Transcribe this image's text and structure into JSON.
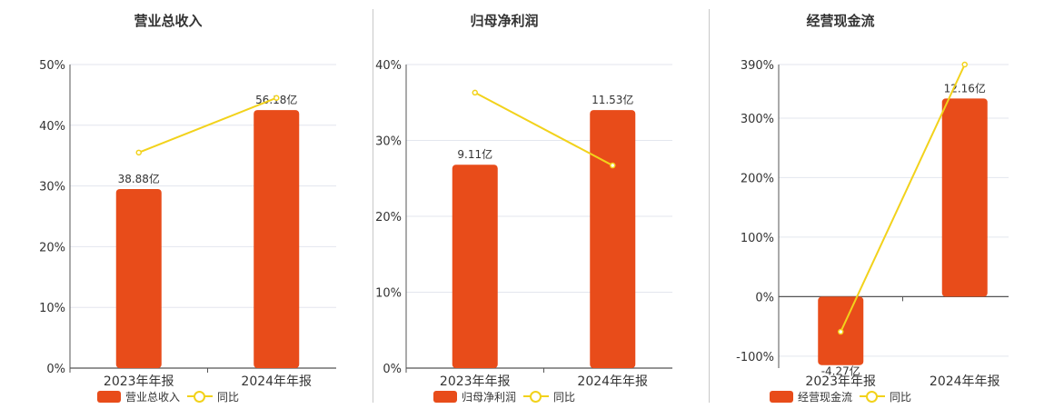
{
  "colors": {
    "bar": "#E84C1A",
    "line": "#F2D21B",
    "grid": "#E3E6EE",
    "axis": "#555555"
  },
  "chart_data": [
    {
      "type": "bar",
      "title": "营业总收入",
      "categories": [
        "2023年年报",
        "2024年年报"
      ],
      "series": [
        {
          "name": "营业总收入",
          "type": "bar",
          "values": [
            29.5,
            42.5
          ],
          "labels": [
            "38.88亿",
            "56.18亿"
          ]
        },
        {
          "name": "同比",
          "type": "line",
          "values": [
            35.5,
            44.5
          ]
        }
      ],
      "ylim": [
        0,
        50
      ],
      "yticks": [
        0,
        10,
        20,
        30,
        40,
        50
      ],
      "ytick_labels": [
        "0%",
        "10%",
        "20%",
        "30%",
        "40%",
        "50%"
      ],
      "grid": true,
      "legend": "bottom-center"
    },
    {
      "type": "bar",
      "title": "归母净利润",
      "categories": [
        "2023年年报",
        "2024年年报"
      ],
      "series": [
        {
          "name": "归母净利润",
          "type": "bar",
          "values": [
            26.8,
            34.0
          ],
          "labels": [
            "9.11亿",
            "11.53亿"
          ]
        },
        {
          "name": "同比",
          "type": "line",
          "values": [
            36.3,
            26.7
          ]
        }
      ],
      "ylim": [
        0,
        40
      ],
      "yticks": [
        0,
        10,
        20,
        30,
        40
      ],
      "ytick_labels": [
        "0%",
        "10%",
        "20%",
        "30%",
        "40%"
      ],
      "grid": true,
      "legend": "bottom-center"
    },
    {
      "type": "bar",
      "title": "经营现金流",
      "categories": [
        "2023年年报",
        "2024年年报"
      ],
      "series": [
        {
          "name": "经营现金流",
          "type": "bar",
          "values": [
            -115,
            333
          ],
          "labels": [
            "-4.27亿",
            "12.16亿"
          ]
        },
        {
          "name": "同比",
          "type": "line",
          "values": [
            -59,
            390
          ]
        }
      ],
      "ylim": [
        -120,
        390
      ],
      "yticks": [
        -100,
        0,
        100,
        200,
        300,
        390
      ],
      "ytick_labels": [
        "-100%",
        "0%",
        "100%",
        "200%",
        "300%",
        "390%"
      ],
      "grid": true,
      "legend": "bottom-center"
    }
  ]
}
